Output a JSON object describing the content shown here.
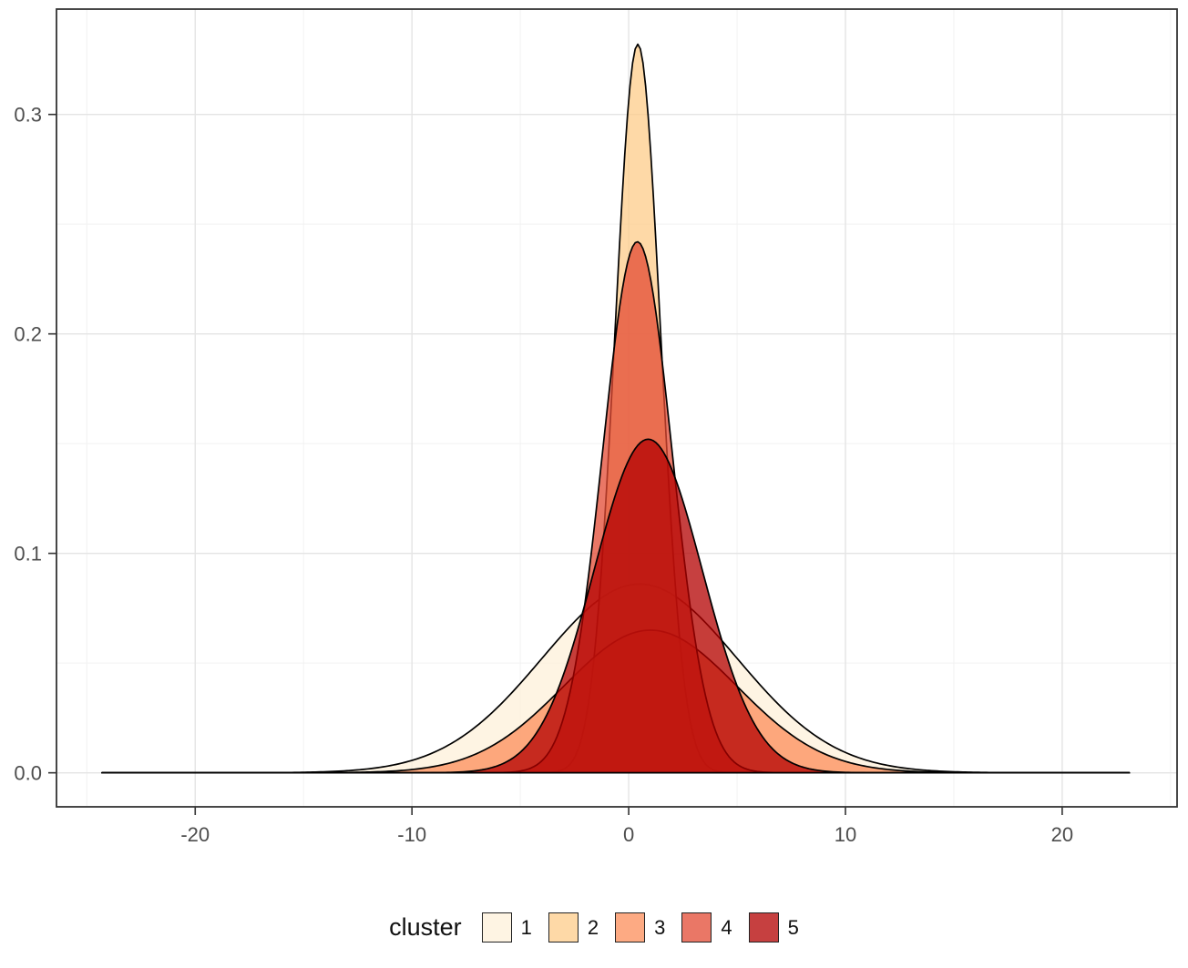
{
  "chart_data": {
    "type": "area",
    "subtype": "overlapping-density-curves",
    "title": "",
    "xlabel": "",
    "ylabel": "",
    "xlim": [
      -26.4,
      25.3
    ],
    "ylim": [
      -0.0155,
      0.348
    ],
    "x_ticks": [
      -20,
      -10,
      0,
      10,
      20
    ],
    "x_tick_labels": [
      "-20",
      "-10",
      "0",
      "10",
      "20"
    ],
    "y_ticks": [
      0,
      0.1,
      0.2,
      0.3
    ],
    "y_tick_labels": [
      "0.0",
      "0.1",
      "0.2",
      "0.3"
    ],
    "x_minor_ticks": [
      -25,
      -15,
      -5,
      5,
      15,
      25
    ],
    "y_minor_ticks": [
      0.05,
      0.15,
      0.25
    ],
    "grid": true,
    "grid_major_color": "#E4E4E4",
    "grid_minor_color": "#F2F2F2",
    "panel_border_color": "#333333",
    "background_color": "#FFFFFF",
    "tick_label_color": "#4D4D4D",
    "curve_stroke_color": "#000000",
    "curve_stroke_width": 1.7,
    "fill_alpha": 0.75,
    "baseline_x_range": [
      -24.3,
      23.1
    ],
    "legend_title": "cluster",
    "legend_position": "bottom",
    "series": [
      {
        "name": "1",
        "fill": "#FEF0D9",
        "peak_x": 0.5,
        "peak_y": 0.086,
        "sd": 4.5
      },
      {
        "name": "2",
        "fill": "#FDCC8A",
        "peak_x": 0.42,
        "peak_y": 0.332,
        "sd": 1.05
      },
      {
        "name": "3",
        "fill": "#FC8D59",
        "peak_x": 1.0,
        "peak_y": 0.065,
        "sd": 4.0
      },
      {
        "name": "4",
        "fill": "#E34A33",
        "peak_x": 0.4,
        "peak_y": 0.242,
        "sd": 1.6
      },
      {
        "name": "5",
        "fill": "#B30000",
        "peak_x": 0.9,
        "peak_y": 0.152,
        "sd": 2.5
      }
    ]
  }
}
